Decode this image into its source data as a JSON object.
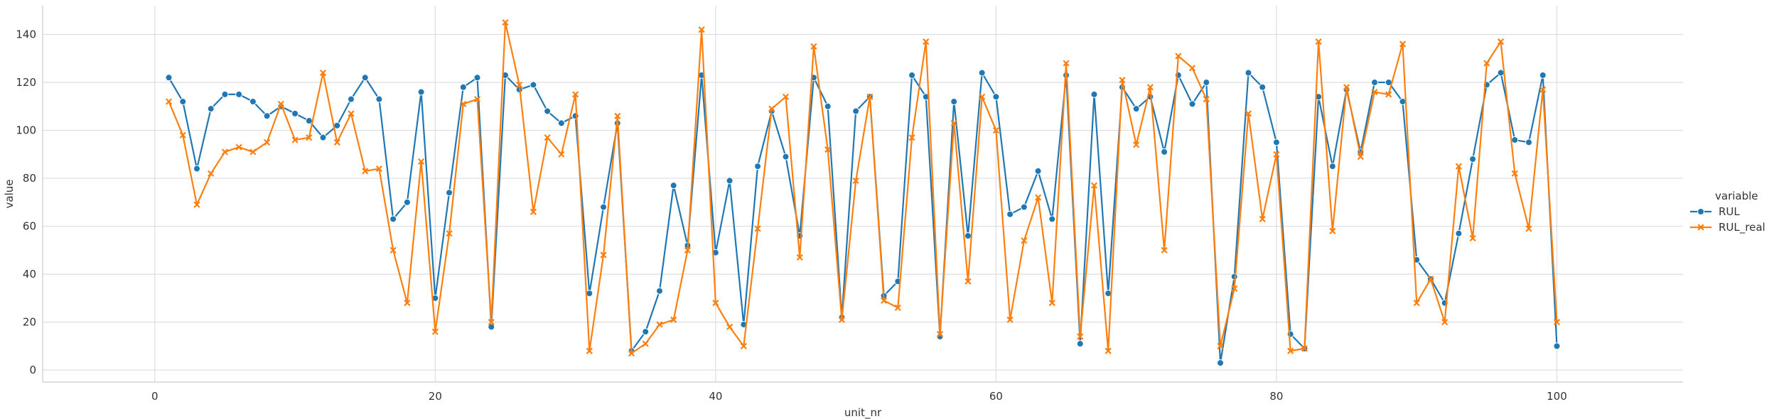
{
  "chart_data": {
    "type": "line",
    "title": "",
    "xlabel": "unit_nr",
    "ylabel": "value",
    "xlim": [
      -8,
      109
    ],
    "ylim": [
      -5,
      152
    ],
    "xticks": [
      0,
      20,
      40,
      60,
      80,
      100
    ],
    "xtick_labels": [
      "0",
      "20",
      "40",
      "60",
      "80",
      "100"
    ],
    "yticks": [
      0,
      20,
      40,
      60,
      80,
      100,
      120,
      140
    ],
    "ytick_labels": [
      "0",
      "20",
      "40",
      "60",
      "80",
      "100",
      "120",
      "140"
    ],
    "grid": true,
    "legend": {
      "title": "variable",
      "placement": "right"
    },
    "x": [
      1,
      2,
      3,
      4,
      5,
      6,
      7,
      8,
      9,
      10,
      11,
      12,
      13,
      14,
      15,
      16,
      17,
      18,
      19,
      20,
      21,
      22,
      23,
      24,
      25,
      26,
      27,
      28,
      29,
      30,
      31,
      32,
      33,
      34,
      35,
      36,
      37,
      38,
      39,
      40,
      41,
      42,
      43,
      44,
      45,
      46,
      47,
      48,
      49,
      50,
      51,
      52,
      53,
      54,
      55,
      56,
      57,
      58,
      59,
      60,
      61,
      62,
      63,
      64,
      65,
      66,
      67,
      68,
      69,
      70,
      71,
      72,
      73,
      74,
      75,
      76,
      77,
      78,
      79,
      80,
      81,
      82,
      83,
      84,
      85,
      86,
      87,
      88,
      89,
      90,
      91,
      92,
      93,
      94,
      95,
      96,
      97,
      98,
      99,
      100
    ],
    "series": [
      {
        "name": "RUL",
        "color": "#1f77b4",
        "marker": "circle",
        "values": [
          122,
          112,
          84,
          109,
          115,
          115,
          112,
          106,
          110,
          107,
          104,
          97,
          102,
          113,
          122,
          113,
          63,
          70,
          116,
          30,
          74,
          118,
          122,
          18,
          123,
          117,
          119,
          108,
          103,
          106,
          32,
          68,
          103,
          8,
          16,
          33,
          77,
          52,
          123,
          49,
          79,
          19,
          85,
          108,
          89,
          56,
          122,
          110,
          22,
          108,
          114,
          31,
          37,
          123,
          114,
          14,
          112,
          56,
          124,
          114,
          65,
          68,
          83,
          63,
          123,
          11,
          115,
          32,
          118,
          109,
          114,
          91,
          123,
          111,
          120,
          3,
          39,
          124,
          118,
          95,
          15,
          9,
          114,
          85,
          117,
          91,
          120,
          120,
          112,
          46,
          38,
          28,
          57,
          88,
          119,
          124,
          96,
          95,
          123,
          10
        ]
      },
      {
        "name": "RUL_real",
        "color": "#ff7f0e",
        "marker": "x",
        "values": [
          112,
          98,
          69,
          82,
          91,
          93,
          91,
          95,
          111,
          96,
          97,
          124,
          95,
          107,
          83,
          84,
          50,
          28,
          87,
          16,
          57,
          111,
          113,
          20,
          145,
          119,
          66,
          97,
          90,
          115,
          8,
          48,
          106,
          7,
          11,
          19,
          21,
          50,
          142,
          28,
          18,
          10,
          59,
          109,
          114,
          47,
          135,
          92,
          21,
          79,
          114,
          29,
          26,
          97,
          137,
          15,
          103,
          37,
          114,
          100,
          21,
          54,
          72,
          28,
          128,
          14,
          77,
          8,
          121,
          94,
          118,
          50,
          131,
          126,
          113,
          10,
          34,
          107,
          63,
          90,
          8,
          9,
          137,
          58,
          118,
          89,
          116,
          115,
          136,
          28,
          38,
          20,
          85,
          55,
          128,
          137,
          82,
          59,
          117,
          20
        ]
      }
    ]
  }
}
